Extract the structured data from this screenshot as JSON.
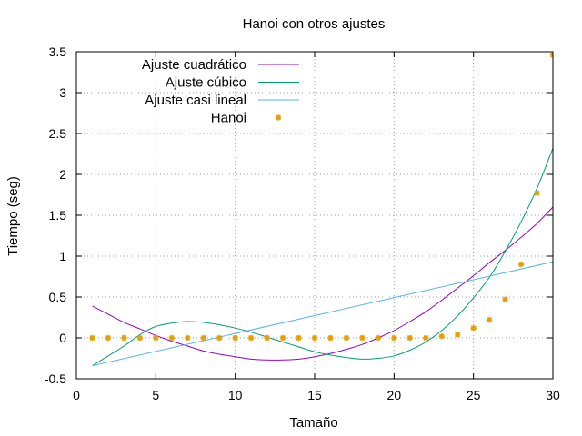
{
  "chart_data": {
    "type": "line",
    "title": "Hanoi con otros ajustes",
    "xlabel": "Tamaño",
    "ylabel": "Tiempo (seg)",
    "xlim": [
      0,
      30
    ],
    "ylim": [
      -0.5,
      3.5
    ],
    "xticks": [
      "0",
      "5",
      "10",
      "15",
      "20",
      "25",
      "30"
    ],
    "yticks": [
      "-0.5",
      "0",
      "0.5",
      "1",
      "1.5",
      "2",
      "2.5",
      "3",
      "3.5"
    ],
    "grid": true,
    "legend_position": "top-left",
    "series": [
      {
        "name": "Ajuste cuadrático",
        "style": "line",
        "color": "#9400d3",
        "x": [
          1,
          2,
          3,
          4,
          5,
          6,
          7,
          8,
          9,
          10,
          11,
          12,
          13,
          14,
          15,
          16,
          17,
          18,
          19,
          20,
          21,
          22,
          23,
          24,
          25,
          26,
          27,
          28,
          29,
          30
        ],
        "values": [
          0.39,
          0.29,
          0.19,
          0.11,
          0.03,
          -0.04,
          -0.1,
          -0.16,
          -0.2,
          -0.23,
          -0.26,
          -0.27,
          -0.27,
          -0.26,
          -0.23,
          -0.19,
          -0.14,
          -0.08,
          0.0,
          0.09,
          0.2,
          0.32,
          0.46,
          0.61,
          0.76,
          0.92,
          1.07,
          1.23,
          1.4,
          1.6
        ]
      },
      {
        "name": "Ajuste cúbico",
        "style": "line",
        "color": "#009e73",
        "x": [
          1,
          2,
          3,
          4,
          5,
          6,
          7,
          8,
          9,
          10,
          11,
          12,
          13,
          14,
          15,
          16,
          17,
          18,
          19,
          20,
          21,
          22,
          23,
          24,
          25,
          26,
          27,
          28,
          29,
          30
        ],
        "values": [
          -0.34,
          -0.22,
          -0.1,
          0.04,
          0.14,
          0.18,
          0.2,
          0.19,
          0.16,
          0.12,
          0.07,
          0.01,
          -0.05,
          -0.11,
          -0.17,
          -0.21,
          -0.24,
          -0.26,
          -0.25,
          -0.22,
          -0.15,
          -0.05,
          0.09,
          0.27,
          0.49,
          0.74,
          1.06,
          1.42,
          1.83,
          2.32
        ]
      },
      {
        "name": "Ajuste casi lineal",
        "style": "line",
        "color": "#56b4e9",
        "x": [
          1,
          30
        ],
        "values": [
          -0.34,
          0.93
        ]
      },
      {
        "name": "Hanoi",
        "style": "points",
        "color": "#e69f00",
        "x": [
          1,
          2,
          3,
          4,
          5,
          6,
          7,
          8,
          9,
          10,
          11,
          12,
          13,
          14,
          15,
          16,
          17,
          18,
          19,
          20,
          21,
          22,
          23,
          24,
          25,
          26,
          27,
          28,
          29,
          30
        ],
        "values": [
          0,
          0,
          0,
          0,
          0,
          0,
          0,
          0,
          0,
          0,
          0,
          0,
          0,
          0,
          0,
          0,
          0,
          0,
          0,
          0,
          0,
          0,
          0.02,
          0.04,
          0.12,
          0.22,
          0.47,
          0.9,
          1.77,
          3.46
        ]
      }
    ]
  }
}
